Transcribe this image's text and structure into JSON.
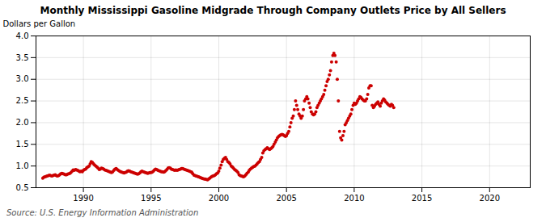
{
  "chart_data": {
    "type": "scatter",
    "title": "Monthly Mississippi Gasoline Midgrade Through Company Outlets Price by All Sellers",
    "ylabel": "Dollars per Gallon",
    "source": "Source: U.S. Energy Information Administration",
    "color": "#cc0000",
    "marker": "circle",
    "grid": true,
    "xlim": [
      1986.5,
      2023
    ],
    "ylim": [
      0.5,
      4.0
    ],
    "xticks": [
      1990,
      1995,
      2000,
      2005,
      2010,
      2015,
      2020
    ],
    "yticks": [
      0.5,
      {
        "value": 1.0,
        "label": "1.0"
      },
      1.5,
      {
        "value": 2.0,
        "label": "2.0"
      },
      2.5,
      {
        "value": 3.0,
        "label": "3.0"
      },
      3.5,
      {
        "value": 4.0,
        "label": "4.0"
      }
    ],
    "x": [
      1987.0,
      1987.08,
      1987.17,
      1987.25,
      1987.33,
      1987.42,
      1987.5,
      1987.58,
      1987.67,
      1987.75,
      1987.83,
      1987.92,
      1988.0,
      1988.08,
      1988.17,
      1988.25,
      1988.33,
      1988.42,
      1988.5,
      1988.58,
      1988.67,
      1988.75,
      1988.83,
      1988.92,
      1989.0,
      1989.08,
      1989.17,
      1989.25,
      1989.33,
      1989.42,
      1989.5,
      1989.58,
      1989.67,
      1989.75,
      1989.83,
      1989.92,
      1990.0,
      1990.08,
      1990.17,
      1990.25,
      1990.33,
      1990.42,
      1990.5,
      1990.58,
      1990.67,
      1990.75,
      1990.83,
      1990.92,
      1991.0,
      1991.08,
      1991.17,
      1991.25,
      1991.33,
      1991.42,
      1991.5,
      1991.58,
      1991.67,
      1991.75,
      1991.83,
      1991.92,
      1992.0,
      1992.08,
      1992.17,
      1992.25,
      1992.33,
      1992.42,
      1992.5,
      1992.58,
      1992.67,
      1992.75,
      1992.83,
      1992.92,
      1993.0,
      1993.08,
      1993.17,
      1993.25,
      1993.33,
      1993.42,
      1993.5,
      1993.58,
      1993.67,
      1993.75,
      1993.83,
      1993.92,
      1994.0,
      1994.08,
      1994.17,
      1994.25,
      1994.33,
      1994.42,
      1994.5,
      1994.58,
      1994.67,
      1994.75,
      1994.83,
      1994.92,
      1995.0,
      1995.08,
      1995.17,
      1995.25,
      1995.33,
      1995.42,
      1995.5,
      1995.58,
      1995.67,
      1995.75,
      1995.83,
      1995.92,
      1996.0,
      1996.08,
      1996.17,
      1996.25,
      1996.33,
      1996.42,
      1996.5,
      1996.58,
      1996.67,
      1996.75,
      1996.83,
      1996.92,
      1997.0,
      1997.08,
      1997.17,
      1997.25,
      1997.33,
      1997.42,
      1997.5,
      1997.58,
      1997.67,
      1997.75,
      1997.83,
      1997.92,
      1998.0,
      1998.08,
      1998.17,
      1998.25,
      1998.33,
      1998.42,
      1998.5,
      1998.58,
      1998.67,
      1998.75,
      1998.83,
      1998.92,
      1999.0,
      1999.08,
      1999.17,
      1999.25,
      1999.33,
      1999.42,
      1999.5,
      1999.58,
      1999.67,
      1999.75,
      1999.83,
      1999.92,
      2000.0,
      2000.08,
      2000.17,
      2000.25,
      2000.33,
      2000.42,
      2000.5,
      2000.58,
      2000.67,
      2000.75,
      2000.83,
      2000.92,
      2001.0,
      2001.08,
      2001.17,
      2001.25,
      2001.33,
      2001.42,
      2001.5,
      2001.58,
      2001.67,
      2001.75,
      2001.83,
      2001.92,
      2002.0,
      2002.08,
      2002.17,
      2002.25,
      2002.33,
      2002.42,
      2002.5,
      2002.58,
      2002.67,
      2002.75,
      2002.83,
      2002.92,
      2003.0,
      2003.08,
      2003.17,
      2003.25,
      2003.33,
      2003.42,
      2003.5,
      2003.58,
      2003.67,
      2003.75,
      2003.83,
      2003.92,
      2004.0,
      2004.08,
      2004.17,
      2004.25,
      2004.33,
      2004.42,
      2004.5,
      2004.58,
      2004.67,
      2004.75,
      2004.83,
      2004.92,
      2005.0,
      2005.08,
      2005.17,
      2005.25,
      2005.33,
      2005.42,
      2005.5,
      2005.58,
      2005.67,
      2005.75,
      2005.83,
      2005.92,
      2006.0,
      2006.08,
      2006.17,
      2006.25,
      2006.33,
      2006.42,
      2006.5,
      2006.58,
      2006.67,
      2006.75,
      2006.83,
      2006.92,
      2007.0,
      2007.08,
      2007.17,
      2007.25,
      2007.33,
      2007.42,
      2007.5,
      2007.58,
      2007.67,
      2007.75,
      2007.83,
      2007.92,
      2008.0,
      2008.08,
      2008.17,
      2008.25,
      2008.33,
      2008.42,
      2008.5,
      2008.58,
      2008.67,
      2008.75,
      2008.83,
      2008.92,
      2009.0,
      2009.08,
      2009.17,
      2009.25,
      2009.33,
      2009.42,
      2009.5,
      2009.58,
      2009.67,
      2009.75,
      2009.83,
      2009.92,
      2010.0,
      2010.08,
      2010.17,
      2010.25,
      2010.33,
      2010.42,
      2010.5,
      2010.58,
      2010.67,
      2010.75,
      2010.83,
      2010.92,
      2011.0,
      2011.08,
      2011.17,
      2011.25,
      2011.33,
      2011.42,
      2011.5,
      2011.58,
      2011.67,
      2011.75,
      2011.83,
      2011.92,
      2012.0,
      2012.08,
      2012.17,
      2012.25,
      2012.33,
      2012.42,
      2012.5,
      2012.58,
      2012.67,
      2012.75,
      2012.83,
      2012.92
    ],
    "values": [
      0.72,
      0.74,
      0.75,
      0.76,
      0.77,
      0.78,
      0.79,
      0.78,
      0.77,
      0.78,
      0.79,
      0.8,
      0.78,
      0.77,
      0.78,
      0.8,
      0.82,
      0.83,
      0.82,
      0.81,
      0.8,
      0.8,
      0.81,
      0.82,
      0.83,
      0.85,
      0.88,
      0.91,
      0.9,
      0.92,
      0.91,
      0.9,
      0.88,
      0.87,
      0.88,
      0.87,
      0.9,
      0.92,
      0.93,
      0.96,
      0.98,
      1.0,
      1.05,
      1.1,
      1.08,
      1.05,
      1.02,
      1.0,
      0.98,
      0.95,
      0.92,
      0.93,
      0.95,
      0.94,
      0.93,
      0.91,
      0.9,
      0.89,
      0.88,
      0.87,
      0.86,
      0.85,
      0.87,
      0.9,
      0.93,
      0.94,
      0.92,
      0.9,
      0.88,
      0.87,
      0.86,
      0.85,
      0.84,
      0.85,
      0.86,
      0.88,
      0.89,
      0.88,
      0.87,
      0.86,
      0.85,
      0.84,
      0.83,
      0.82,
      0.81,
      0.82,
      0.84,
      0.87,
      0.88,
      0.87,
      0.86,
      0.85,
      0.84,
      0.83,
      0.84,
      0.85,
      0.85,
      0.86,
      0.88,
      0.91,
      0.93,
      0.92,
      0.9,
      0.89,
      0.88,
      0.87,
      0.87,
      0.86,
      0.87,
      0.89,
      0.92,
      0.95,
      0.96,
      0.95,
      0.93,
      0.92,
      0.91,
      0.9,
      0.91,
      0.9,
      0.91,
      0.92,
      0.93,
      0.94,
      0.94,
      0.93,
      0.92,
      0.91,
      0.9,
      0.89,
      0.88,
      0.87,
      0.86,
      0.82,
      0.79,
      0.78,
      0.77,
      0.76,
      0.75,
      0.74,
      0.73,
      0.72,
      0.71,
      0.7,
      0.7,
      0.69,
      0.68,
      0.7,
      0.72,
      0.74,
      0.76,
      0.77,
      0.78,
      0.8,
      0.82,
      0.84,
      0.88,
      0.95,
      1.02,
      1.1,
      1.15,
      1.18,
      1.2,
      1.15,
      1.1,
      1.08,
      1.05,
      1.0,
      0.98,
      0.95,
      0.92,
      0.9,
      0.88,
      0.85,
      0.8,
      0.78,
      0.77,
      0.76,
      0.75,
      0.77,
      0.8,
      0.83,
      0.86,
      0.9,
      0.93,
      0.95,
      0.97,
      0.99,
      1.0,
      1.02,
      1.05,
      1.08,
      1.1,
      1.15,
      1.2,
      1.3,
      1.35,
      1.38,
      1.4,
      1.42,
      1.4,
      1.38,
      1.4,
      1.42,
      1.45,
      1.5,
      1.55,
      1.6,
      1.65,
      1.68,
      1.7,
      1.72,
      1.73,
      1.72,
      1.7,
      1.68,
      1.7,
      1.75,
      1.8,
      1.9,
      2.0,
      2.1,
      2.15,
      2.3,
      2.5,
      2.4,
      2.3,
      2.2,
      2.15,
      2.1,
      2.15,
      2.3,
      2.5,
      2.55,
      2.6,
      2.55,
      2.45,
      2.35,
      2.25,
      2.2,
      2.18,
      2.2,
      2.25,
      2.35,
      2.4,
      2.45,
      2.5,
      2.55,
      2.6,
      2.65,
      2.75,
      2.85,
      2.95,
      3.0,
      3.1,
      3.2,
      3.4,
      3.55,
      3.6,
      3.55,
      3.4,
      3.0,
      2.5,
      1.8,
      1.65,
      1.6,
      1.7,
      1.8,
      1.95,
      2.0,
      2.05,
      2.1,
      2.15,
      2.2,
      2.3,
      2.4,
      2.45,
      2.42,
      2.45,
      2.5,
      2.55,
      2.6,
      2.58,
      2.55,
      2.52,
      2.5,
      2.5,
      2.55,
      2.65,
      2.8,
      2.85,
      2.85,
      2.4,
      2.35,
      2.38,
      2.42,
      2.45,
      2.48,
      2.42,
      2.38,
      2.45,
      2.5,
      2.55,
      2.52,
      2.48,
      2.45,
      2.42,
      2.4,
      2.38,
      2.42,
      2.4,
      2.35
    ]
  }
}
